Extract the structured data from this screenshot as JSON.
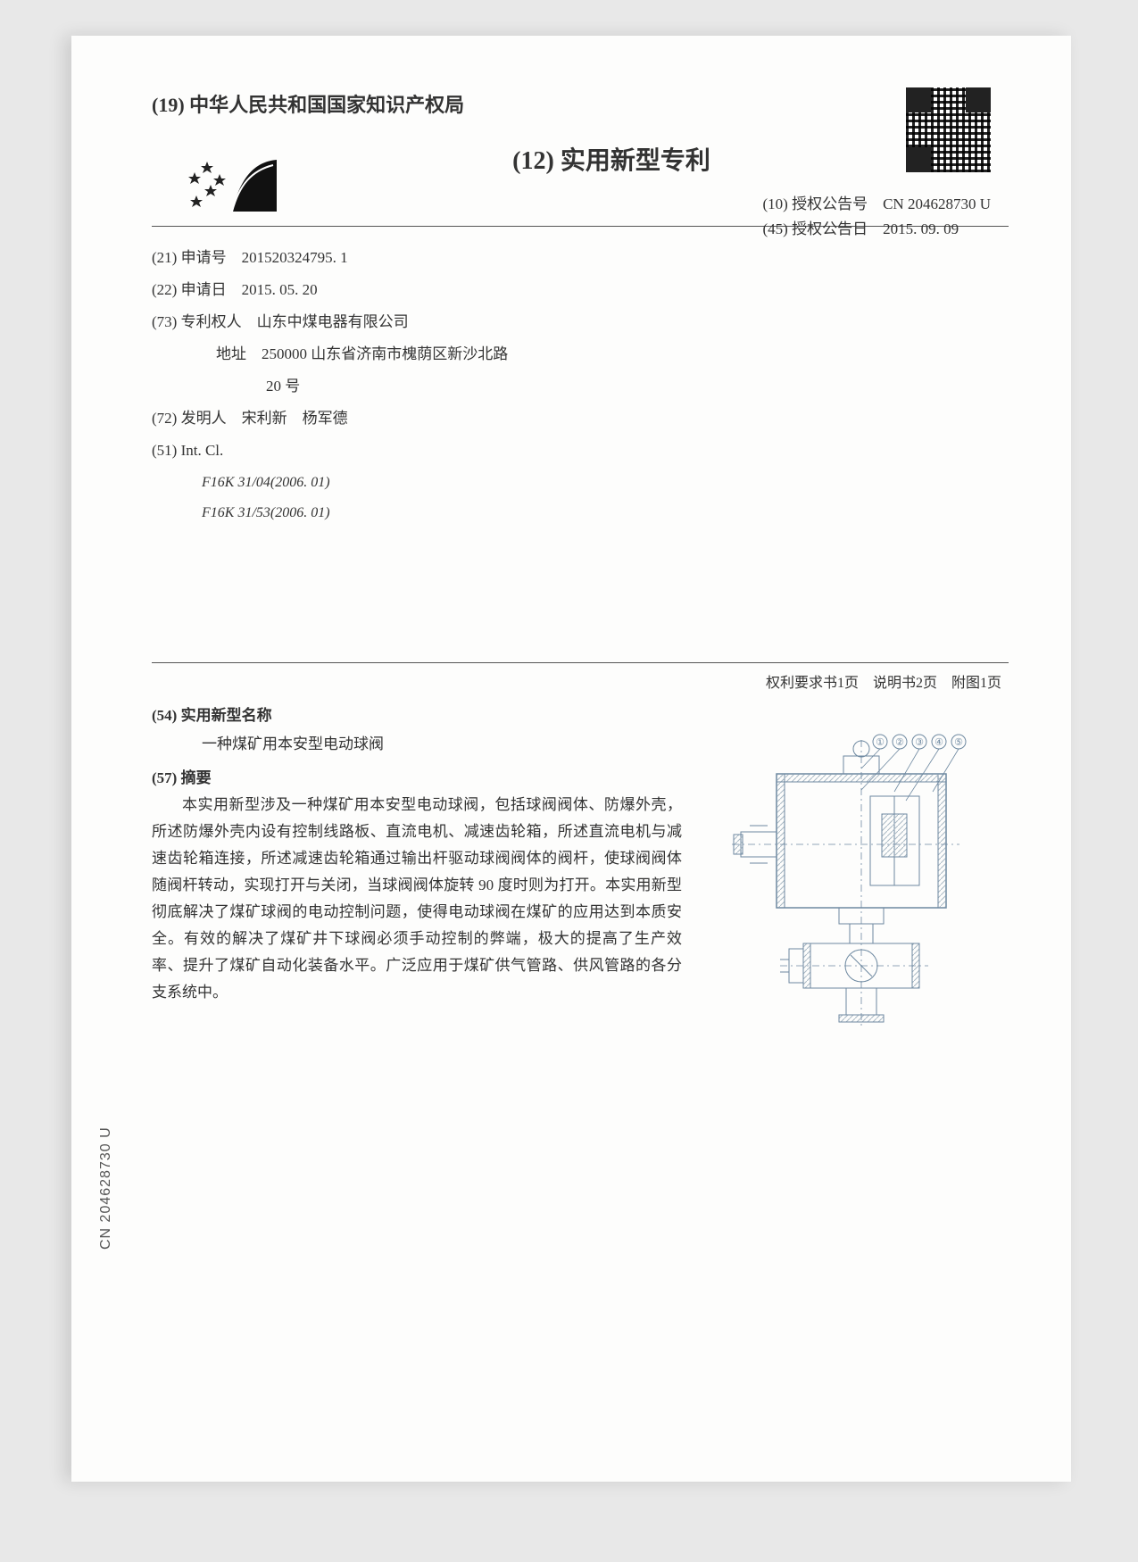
{
  "header": {
    "authority_line": "(19) 中华人民共和国国家知识产权局",
    "doc_type_line": "(12) 实用新型专利",
    "pub_no_label": "(10) 授权公告号",
    "pub_no": "CN 204628730 U",
    "pub_date_label": "(45) 授权公告日",
    "pub_date": "2015. 09. 09"
  },
  "fields": {
    "app_no_label": "(21) 申请号",
    "app_no": "201520324795. 1",
    "app_date_label": "(22) 申请日",
    "app_date": "2015. 05. 20",
    "patentee_label": "(73) 专利权人",
    "patentee": "山东中煤电器有限公司",
    "address_label": "地址",
    "address_line1": "250000 山东省济南市槐荫区新沙北路",
    "address_line2": "20 号",
    "inventor_label": "(72) 发明人",
    "inventors": "宋利新　杨军德",
    "int_cl_label": "(51) Int. Cl.",
    "ipc1": "F16K 31/04(2006. 01)",
    "ipc2": "F16K 31/53(2006. 01)"
  },
  "page_counts": "权利要求书1页　说明书2页　附图1页",
  "body": {
    "name_label": "(54) 实用新型名称",
    "name_value": "一种煤矿用本安型电动球阀",
    "abstract_label": "(57) 摘要",
    "abstract_text": "本实用新型涉及一种煤矿用本安型电动球阀，包括球阀阀体、防爆外壳，所述防爆外壳内设有控制线路板、直流电机、减速齿轮箱，所述直流电机与减速齿轮箱连接，所述减速齿轮箱通过输出杆驱动球阀阀体的阀杆，使球阀阀体随阀杆转动，实现打开与关闭，当球阀阀体旋转 90 度时则为打开。本实用新型彻底解决了煤矿球阀的电动控制问题，使得电动球阀在煤矿的应用达到本质安全。有效的解决了煤矿井下球阀必须手动控制的弊端，极大的提高了生产效率、提升了煤矿自动化装备水平。广泛应用于煤矿供气管路、供风管路的各分支系统中。"
  },
  "side_code": "CN 204628730 U",
  "figure": {
    "callouts": [
      "①",
      "②",
      "③",
      "④",
      "⑤"
    ],
    "stroke": "#6d88a0",
    "hatch": "#a9b8c4"
  }
}
